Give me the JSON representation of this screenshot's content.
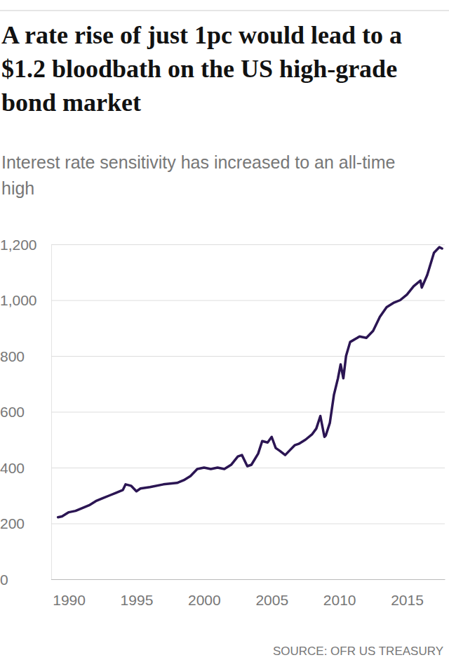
{
  "chart_data": {
    "type": "line",
    "title": "A rate rise of just 1pc would lead to a $1.2 bloodbath on the US high-grade bond market",
    "subtitle": "Interest rate sensitivity has increased to an all-time high",
    "source": "SOURCE: OFR US TREASURY",
    "x": [
      1989.2,
      1989.5,
      1990,
      1990.5,
      1991,
      1991.5,
      1992,
      1992.5,
      1993,
      1993.5,
      1994,
      1994.2,
      1994.6,
      1995,
      1995.3,
      1996,
      1997,
      1998,
      1998.5,
      1999,
      1999.5,
      2000,
      2000.5,
      2001,
      2001.5,
      2002,
      2002.5,
      2002.8,
      2003.2,
      2003.5,
      2004,
      2004.3,
      2004.7,
      2005,
      2005.3,
      2005.6,
      2006,
      2006.3,
      2006.7,
      2007,
      2007.5,
      2008,
      2008.3,
      2008.6,
      2008.9,
      2009,
      2009.3,
      2009.6,
      2009.9,
      2010.1,
      2010.3,
      2010.5,
      2010.8,
      2011.5,
      2012,
      2012.5,
      2013,
      2013.5,
      2014,
      2014.5,
      2015,
      2015.5,
      2016,
      2016.1,
      2016.5,
      2017,
      2017.4,
      2017.6
    ],
    "values": [
      222,
      225,
      240,
      245,
      255,
      265,
      280,
      290,
      300,
      310,
      320,
      340,
      335,
      315,
      325,
      330,
      340,
      345,
      355,
      370,
      395,
      400,
      395,
      400,
      395,
      410,
      440,
      445,
      405,
      410,
      450,
      495,
      490,
      510,
      470,
      460,
      445,
      460,
      480,
      485,
      500,
      520,
      540,
      585,
      510,
      515,
      560,
      660,
      720,
      770,
      720,
      800,
      850,
      870,
      865,
      890,
      940,
      975,
      990,
      1000,
      1020,
      1050,
      1070,
      1045,
      1090,
      1170,
      1190,
      1185
    ],
    "color": "#2b1553",
    "xlim": [
      1988.7,
      2017.8
    ],
    "xticks": [
      1990,
      1995,
      2000,
      2005,
      2010,
      2015
    ],
    "ylim": [
      0,
      1200
    ],
    "yticks": [
      0,
      200,
      400,
      600,
      800,
      {
        "value": 1000,
        "label": "1,000"
      },
      {
        "value": 1200,
        "label": "1,200"
      }
    ],
    "grid": true
  }
}
